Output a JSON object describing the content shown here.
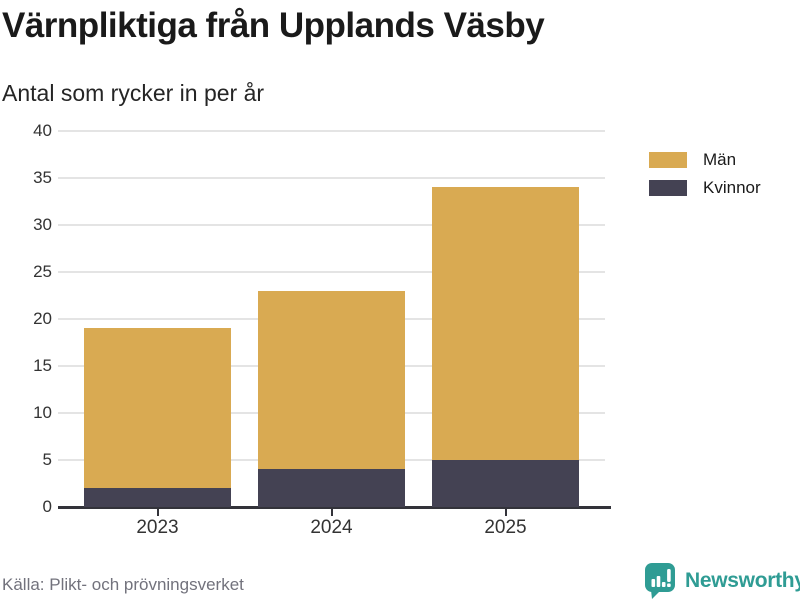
{
  "header": {
    "title": "Värnpliktiga från Upplands Väsby",
    "subtitle": "Antal som rycker in per år"
  },
  "legend": [
    {
      "label": "Män",
      "color_key": "men"
    },
    {
      "label": "Kvinnor",
      "color_key": "women"
    }
  ],
  "footer": {
    "source": "Källa: Plikt- och prövningsverket",
    "brand": "Newsworthy",
    "brand_icon": "newsworthy-speech-bubble-bars-icon"
  },
  "colors": {
    "men": "#d9aa52",
    "women": "#444253",
    "teal": "#2f9c94",
    "gridline": "#e4e4e4",
    "axis": "#33333a",
    "text_dark": "#1a1a1a",
    "text_sub": "#252525",
    "text_axis": "#333333",
    "text_gray": "#72727c"
  },
  "chart_data": {
    "type": "bar",
    "stacked": true,
    "title": "Värnpliktiga från Upplands Väsby",
    "subtitle": "Antal som rycker in per år",
    "categories": [
      "2023",
      "2024",
      "2025"
    ],
    "series": [
      {
        "name": "Kvinnor",
        "values": [
          2,
          4,
          5
        ],
        "color": "#444253"
      },
      {
        "name": "Män",
        "values": [
          17,
          19,
          29
        ],
        "color": "#d9aa52"
      }
    ],
    "totals": [
      19,
      23,
      34
    ],
    "xlabel": "",
    "ylabel": "",
    "ylim": [
      0,
      40
    ],
    "yticks": [
      0,
      5,
      10,
      15,
      20,
      25,
      30,
      35,
      40
    ],
    "grid": "horizontal",
    "legend_position": "right",
    "source": "Källa: Plikt- och prövningsverket"
  }
}
